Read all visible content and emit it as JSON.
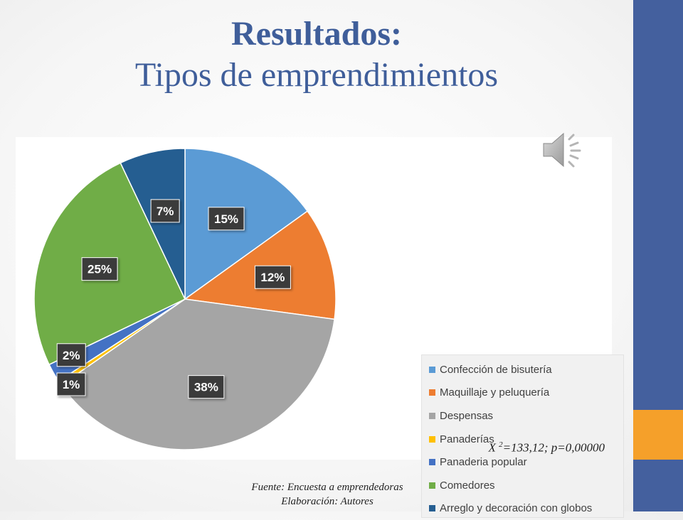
{
  "slide": {
    "title": "Resultados:",
    "subtitle": "Tipos de emprendimientos",
    "statistic": {
      "prefix": "X",
      "superscript": "2",
      "suffix": "=133,12; p=0,00000"
    },
    "source_line1": "Fuente: Encuesta a emprendedoras",
    "source_line2": "Elaboración: Autores",
    "speaker_icon": "speaker-sound-icon",
    "colors": {
      "side_bar": "#44609e",
      "side_accent": "#f5a02a",
      "title": "#3f5e9a"
    }
  },
  "chart_data": {
    "type": "pie",
    "legend_position": "right",
    "slices": [
      {
        "label": "Confección de bisutería",
        "value": 15,
        "display": "15%",
        "color": "#5b9bd5"
      },
      {
        "label": "Maquillaje y peluquería",
        "value": 12,
        "display": "12%",
        "color": "#ed7d31"
      },
      {
        "label": "Despensas",
        "value": 38,
        "display": "38%",
        "color": "#a5a5a5"
      },
      {
        "label": "Panaderías",
        "value": 0.5,
        "display": "",
        "color": "#ffc000"
      },
      {
        "label": "Panaderia popular",
        "value": 2,
        "display": "2%",
        "color": "#4472c4"
      },
      {
        "label": "Comedores",
        "value": 25,
        "display": "25%",
        "color": "#70ad47"
      },
      {
        "label": "Arreglo y decoración con globos",
        "value": 7,
        "display": "7%",
        "color": "#255e91"
      }
    ],
    "extra_label": "1%"
  }
}
